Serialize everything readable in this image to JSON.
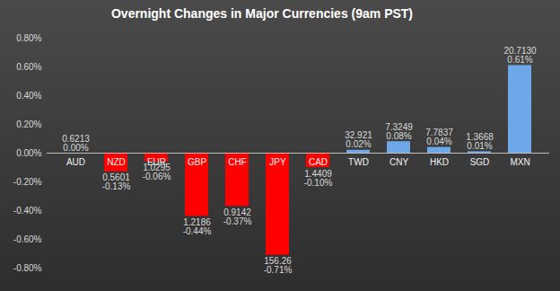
{
  "chart_data": {
    "type": "bar",
    "title": "Overnight Changes in Major Currencies (9am PST)",
    "categories": [
      "AUD",
      "NZD",
      "EUR",
      "GBP",
      "CHF",
      "JPY",
      "CAD",
      "TWD",
      "CNY",
      "HKD",
      "SGD",
      "MXN"
    ],
    "values": [
      0,
      -0.13,
      -0.06,
      -0.44,
      -0.37,
      -0.71,
      -0.1,
      0.02,
      0.08,
      0.04,
      0.01,
      0.61
    ],
    "value_labels": [
      "0.00%",
      "-0.13%",
      "-0.06%",
      "-0.44%",
      "-0.37%",
      "-0.71%",
      "-0.10%",
      "0.02%",
      "0.08%",
      "0.04%",
      "0.01%",
      "0.61%"
    ],
    "rates": [
      {
        "value": 0.6213,
        "label": "0.6213"
      },
      {
        "value": 0.5601,
        "label": "0.5601"
      },
      {
        "value": 1.0295,
        "label": "1.0295"
      },
      {
        "value": 1.2186,
        "label": "1.2186"
      },
      {
        "value": 0.9142,
        "label": "0.9142"
      },
      {
        "value": 156.26,
        "label": "156.26"
      },
      {
        "value": 1.4409,
        "label": "1.4409"
      },
      {
        "value": 32.921,
        "label": "32.921"
      },
      {
        "value": 7.3249,
        "label": "7.3249"
      },
      {
        "value": 7.7837,
        "label": "7.7837"
      },
      {
        "value": 1.3668,
        "label": "1.3668"
      },
      {
        "value": 20.713,
        "label": "20.7130"
      }
    ],
    "colors": [
      "#6fa8e8",
      "#ff0000",
      "#ff0000",
      "#ff0000",
      "#ff0000",
      "#ff0000",
      "#ff0000",
      "#6fa8e8",
      "#6fa8e8",
      "#6fa8e8",
      "#6fa8e8",
      "#6fa8e8"
    ],
    "ylim": [
      -0.8,
      0.8
    ],
    "yticks": [
      {
        "value": -0.8,
        "label": "-0.80%"
      },
      {
        "value": -0.6,
        "label": "-0.60%"
      },
      {
        "value": -0.4,
        "label": "-0.40%"
      },
      {
        "value": -0.2,
        "label": "-0.20%"
      },
      {
        "value": 0,
        "label": "0.00%"
      },
      {
        "value": 0.2,
        "label": "0.20%"
      },
      {
        "value": 0.4,
        "label": "0.40%"
      },
      {
        "value": 0.6,
        "label": "0.60%"
      },
      {
        "value": 0.8,
        "label": "0.80%"
      }
    ],
    "data_labels": true,
    "grid": false
  }
}
